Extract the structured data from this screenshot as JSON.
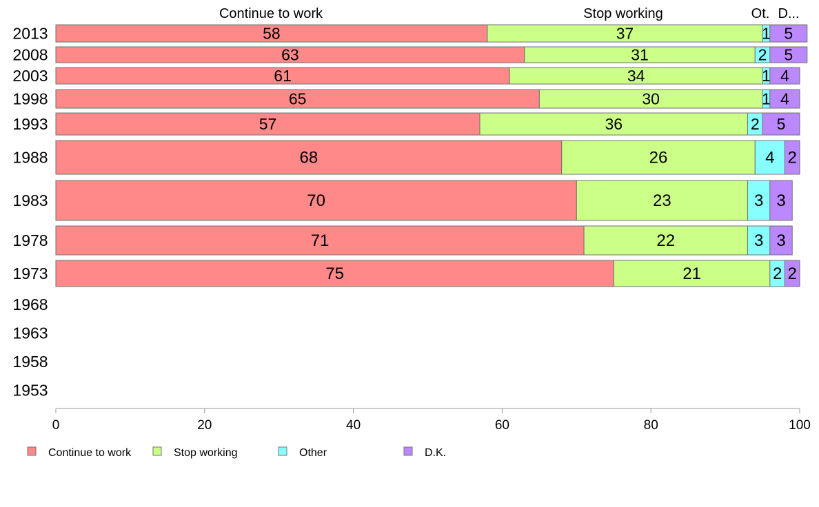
{
  "chart_data": {
    "type": "bar",
    "orientation": "horizontal",
    "stacked": true,
    "categories": [
      "2013",
      "2008",
      "2003",
      "1998",
      "1993",
      "1988",
      "1983",
      "1978",
      "1973",
      "1968",
      "1963",
      "1958",
      "1953"
    ],
    "series": [
      {
        "name": "Continue to work",
        "color": "#ff8888",
        "values": [
          58,
          63,
          61,
          65,
          57,
          68,
          70,
          71,
          75,
          null,
          null,
          null,
          null
        ]
      },
      {
        "name": "Stop working",
        "color": "#ccff88",
        "values": [
          37,
          31,
          34,
          30,
          36,
          26,
          23,
          22,
          21,
          null,
          null,
          null,
          null
        ]
      },
      {
        "name": "Other",
        "color": "#88ffff",
        "values": [
          1,
          2,
          1,
          1,
          2,
          4,
          3,
          3,
          2,
          null,
          null,
          null,
          null
        ]
      },
      {
        "name": "D.K.",
        "color": "#bb88ff",
        "values": [
          5,
          5,
          4,
          4,
          5,
          2,
          3,
          3,
          2,
          null,
          null,
          null,
          null
        ]
      }
    ],
    "top_labels": [
      "Continue to work",
      "Stop working",
      "Ot.",
      "D..."
    ],
    "xlim": [
      0,
      100
    ],
    "xticks": [
      "0",
      "20",
      "40",
      "60",
      "80",
      "100"
    ],
    "grid": false,
    "legend_position": "bottom"
  }
}
